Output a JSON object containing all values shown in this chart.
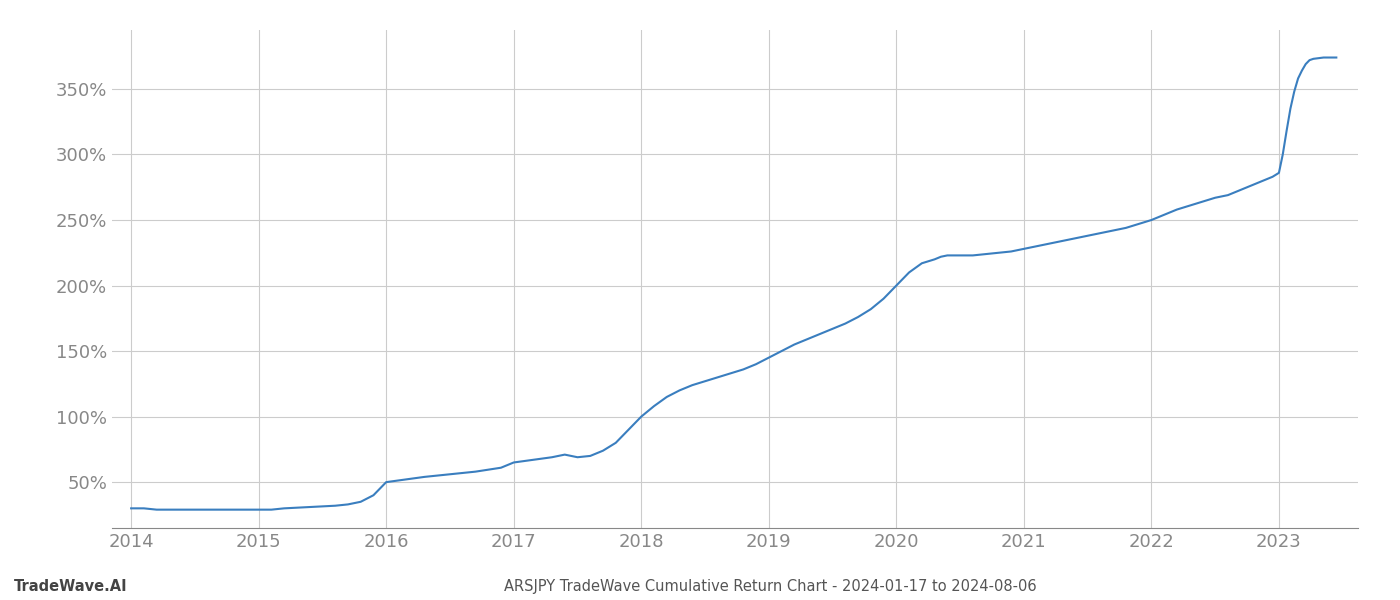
{
  "title": "ARSJPY TradeWave Cumulative Return Chart - 2024-01-17 to 2024-08-06",
  "watermark": "TradeWave.AI",
  "line_color": "#3a7ebf",
  "background_color": "#ffffff",
  "grid_color": "#cccccc",
  "axis_color": "#888888",
  "title_color": "#555555",
  "watermark_color": "#444444",
  "x_years": [
    2014,
    2015,
    2016,
    2017,
    2018,
    2019,
    2020,
    2021,
    2022,
    2023
  ],
  "y_ticks": [
    50,
    100,
    150,
    200,
    250,
    300,
    350
  ],
  "data_points": [
    [
      2014.0,
      30
    ],
    [
      2014.1,
      30
    ],
    [
      2014.2,
      29
    ],
    [
      2014.4,
      29
    ],
    [
      2014.6,
      29
    ],
    [
      2014.8,
      29
    ],
    [
      2015.0,
      29
    ],
    [
      2015.1,
      29
    ],
    [
      2015.2,
      30
    ],
    [
      2015.4,
      31
    ],
    [
      2015.6,
      32
    ],
    [
      2015.7,
      33
    ],
    [
      2015.8,
      35
    ],
    [
      2015.9,
      40
    ],
    [
      2016.0,
      50
    ],
    [
      2016.15,
      52
    ],
    [
      2016.3,
      54
    ],
    [
      2016.5,
      56
    ],
    [
      2016.7,
      58
    ],
    [
      2016.9,
      61
    ],
    [
      2017.0,
      65
    ],
    [
      2017.15,
      67
    ],
    [
      2017.3,
      69
    ],
    [
      2017.4,
      71
    ],
    [
      2017.45,
      70
    ],
    [
      2017.5,
      69
    ],
    [
      2017.6,
      70
    ],
    [
      2017.7,
      74
    ],
    [
      2017.8,
      80
    ],
    [
      2017.9,
      90
    ],
    [
      2018.0,
      100
    ],
    [
      2018.1,
      108
    ],
    [
      2018.2,
      115
    ],
    [
      2018.3,
      120
    ],
    [
      2018.4,
      124
    ],
    [
      2018.5,
      127
    ],
    [
      2018.6,
      130
    ],
    [
      2018.7,
      133
    ],
    [
      2018.8,
      136
    ],
    [
      2018.9,
      140
    ],
    [
      2019.0,
      145
    ],
    [
      2019.1,
      150
    ],
    [
      2019.2,
      155
    ],
    [
      2019.3,
      159
    ],
    [
      2019.4,
      163
    ],
    [
      2019.5,
      167
    ],
    [
      2019.6,
      171
    ],
    [
      2019.7,
      176
    ],
    [
      2019.8,
      182
    ],
    [
      2019.9,
      190
    ],
    [
      2020.0,
      200
    ],
    [
      2020.1,
      210
    ],
    [
      2020.2,
      217
    ],
    [
      2020.3,
      220
    ],
    [
      2020.35,
      222
    ],
    [
      2020.4,
      223
    ],
    [
      2020.5,
      223
    ],
    [
      2020.6,
      223
    ],
    [
      2020.7,
      224
    ],
    [
      2020.8,
      225
    ],
    [
      2020.9,
      226
    ],
    [
      2021.0,
      228
    ],
    [
      2021.1,
      230
    ],
    [
      2021.2,
      232
    ],
    [
      2021.3,
      234
    ],
    [
      2021.4,
      236
    ],
    [
      2021.5,
      238
    ],
    [
      2021.6,
      240
    ],
    [
      2021.7,
      242
    ],
    [
      2021.8,
      244
    ],
    [
      2021.9,
      247
    ],
    [
      2022.0,
      250
    ],
    [
      2022.1,
      254
    ],
    [
      2022.2,
      258
    ],
    [
      2022.3,
      261
    ],
    [
      2022.4,
      264
    ],
    [
      2022.5,
      267
    ],
    [
      2022.6,
      269
    ],
    [
      2022.65,
      271
    ],
    [
      2022.7,
      273
    ],
    [
      2022.75,
      275
    ],
    [
      2022.8,
      277
    ],
    [
      2022.85,
      279
    ],
    [
      2022.9,
      281
    ],
    [
      2022.95,
      283
    ],
    [
      2023.0,
      286
    ],
    [
      2023.03,
      300
    ],
    [
      2023.06,
      318
    ],
    [
      2023.09,
      335
    ],
    [
      2023.12,
      348
    ],
    [
      2023.15,
      358
    ],
    [
      2023.18,
      364
    ],
    [
      2023.21,
      369
    ],
    [
      2023.24,
      372
    ],
    [
      2023.27,
      373
    ],
    [
      2023.35,
      374
    ],
    [
      2023.45,
      374
    ]
  ],
  "xlim": [
    2013.85,
    2023.62
  ],
  "ylim": [
    15,
    395
  ],
  "figsize": [
    14.0,
    6.0
  ],
  "dpi": 100
}
